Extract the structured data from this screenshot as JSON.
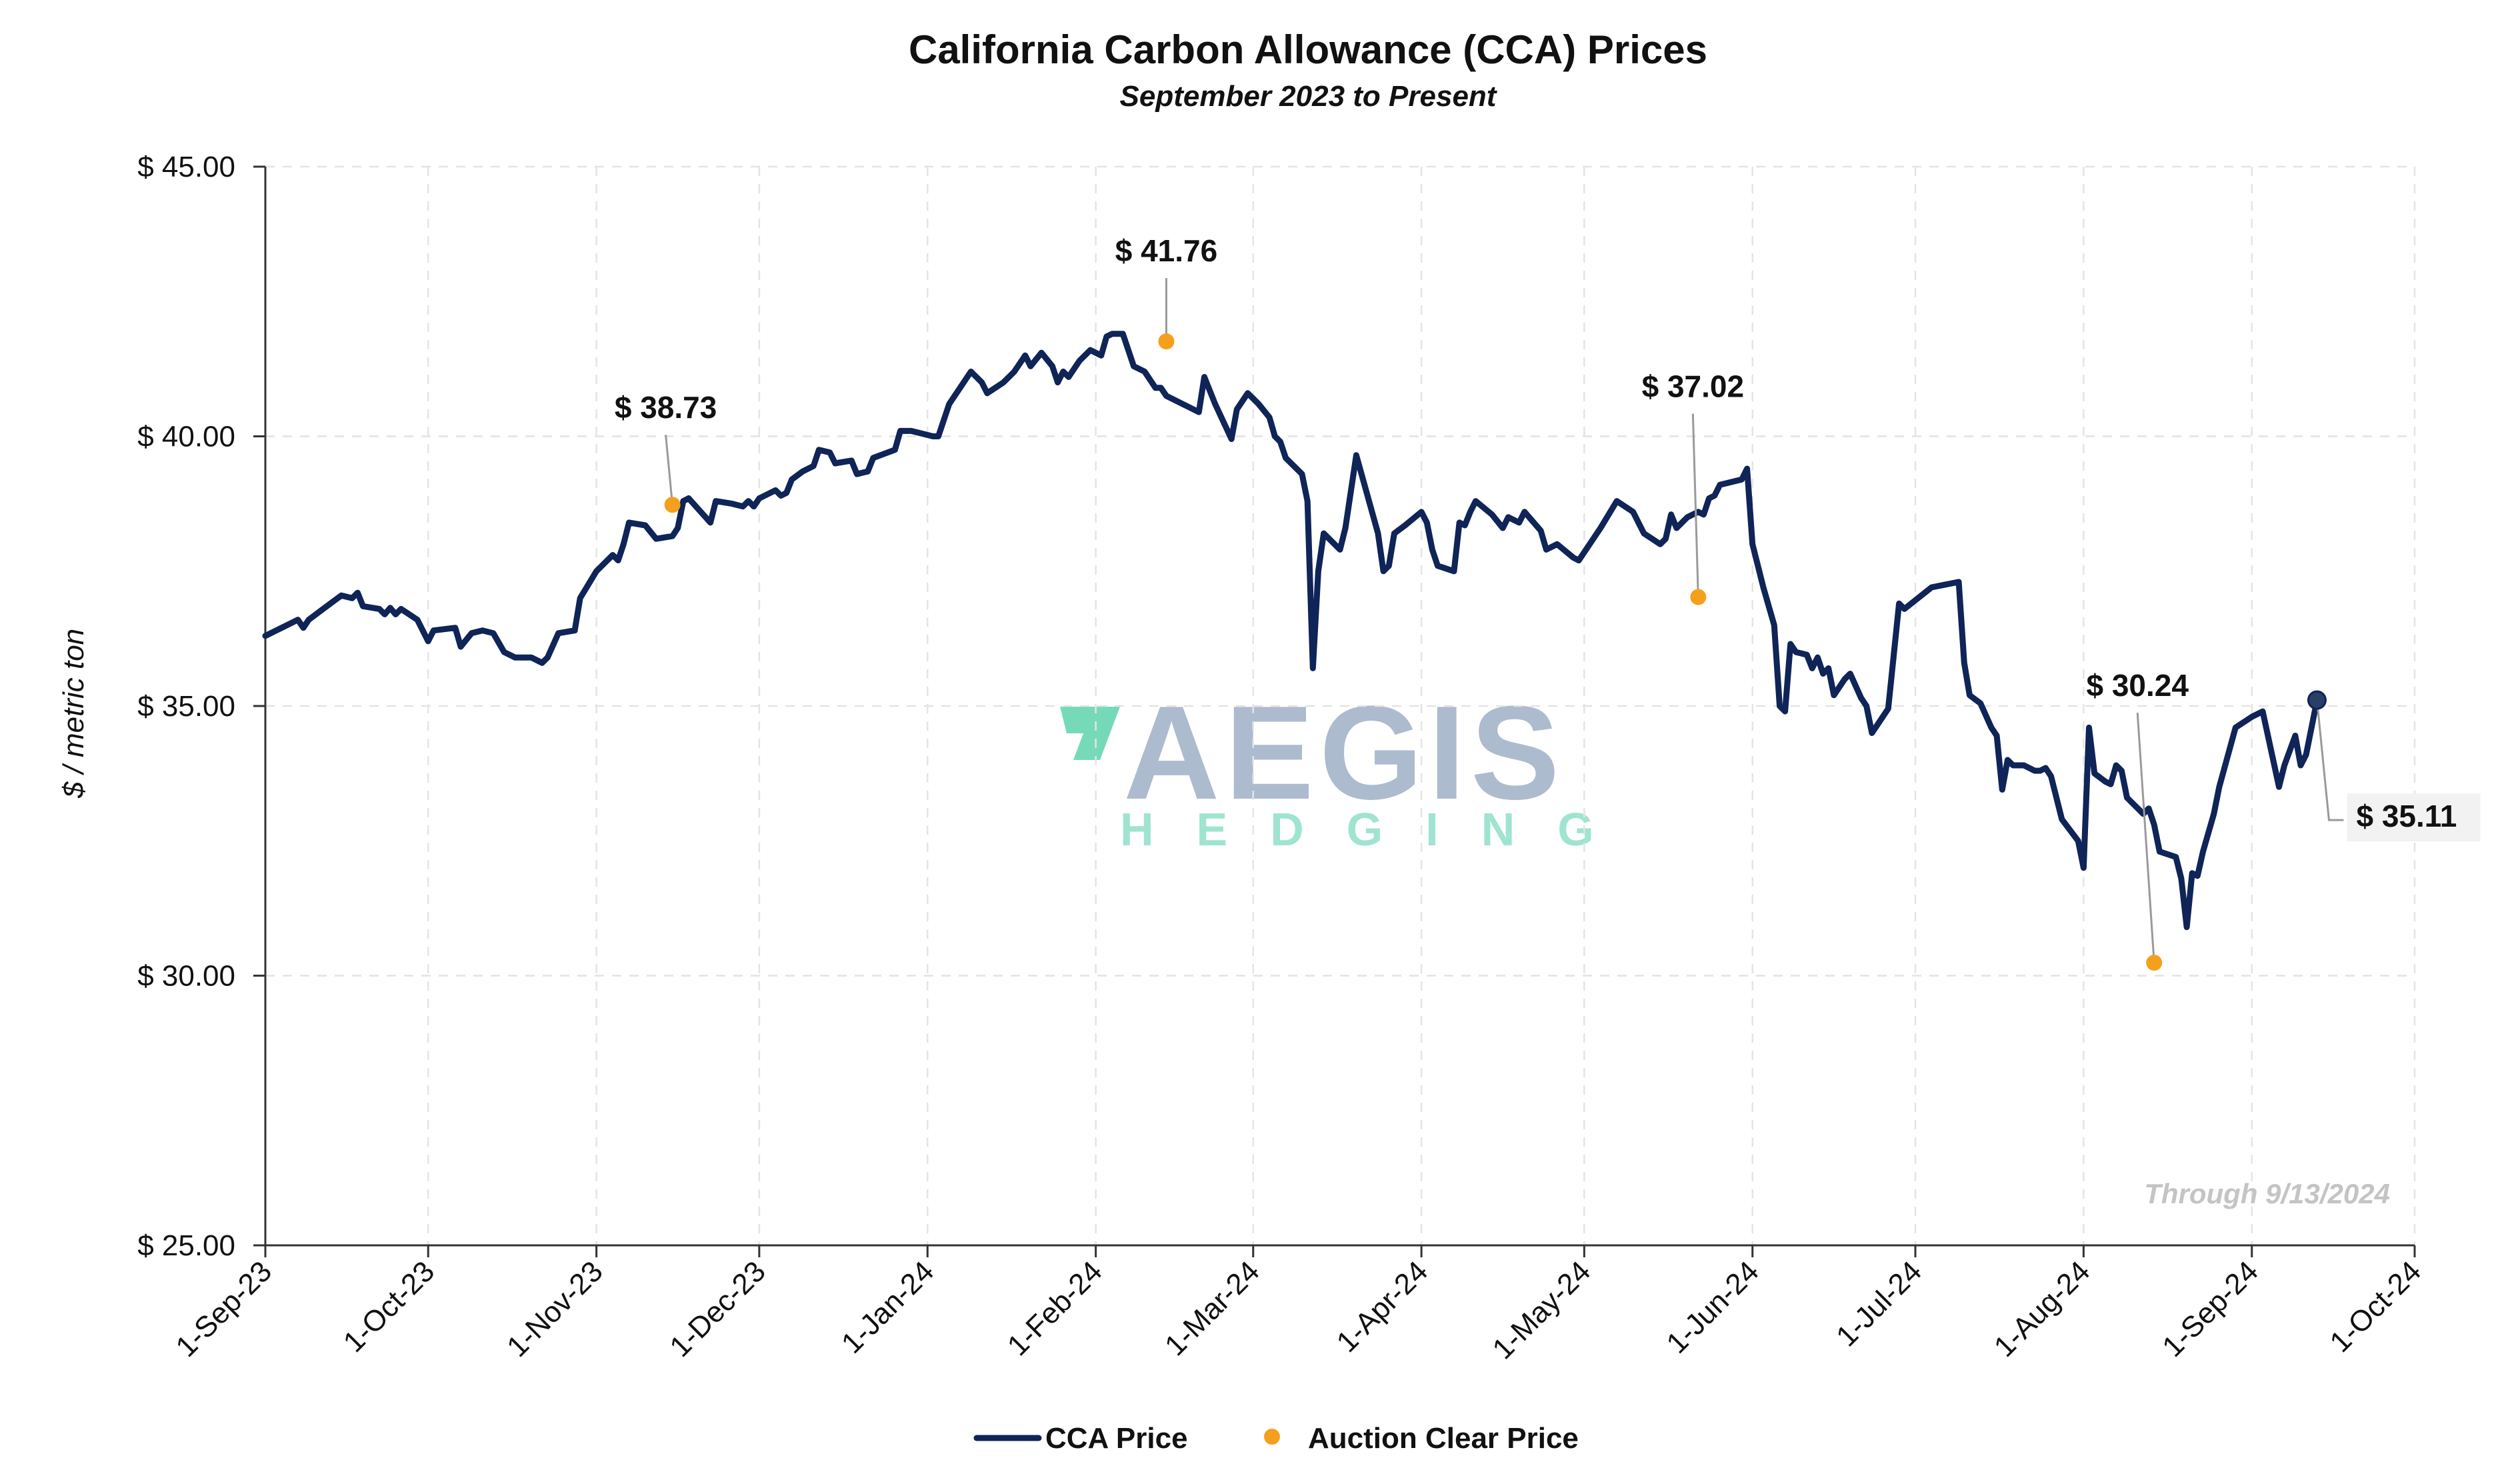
{
  "chart_data": {
    "type": "line",
    "title": "California Carbon Allowance (CCA) Prices",
    "subtitle": "September 2023 to Present",
    "ylabel": "$ / metric ton",
    "xlabel": "",
    "ylim": [
      25,
      45
    ],
    "xlim": [
      "2023-09-01",
      "2024-10-01"
    ],
    "y_ticks": [
      {
        "value": 25,
        "label": "$ 25.00"
      },
      {
        "value": 30,
        "label": "$ 30.00"
      },
      {
        "value": 35,
        "label": "$ 35.00"
      },
      {
        "value": 40,
        "label": "$ 40.00"
      },
      {
        "value": 45,
        "label": "$ 45.00"
      }
    ],
    "x_ticks": [
      {
        "date": "2023-09-01",
        "label": "1-Sep-23"
      },
      {
        "date": "2023-10-01",
        "label": "1-Oct-23"
      },
      {
        "date": "2023-11-01",
        "label": "1-Nov-23"
      },
      {
        "date": "2023-12-01",
        "label": "1-Dec-23"
      },
      {
        "date": "2024-01-01",
        "label": "1-Jan-24"
      },
      {
        "date": "2024-02-01",
        "label": "1-Feb-24"
      },
      {
        "date": "2024-03-01",
        "label": "1-Mar-24"
      },
      {
        "date": "2024-04-01",
        "label": "1-Apr-24"
      },
      {
        "date": "2024-05-01",
        "label": "1-May-24"
      },
      {
        "date": "2024-06-01",
        "label": "1-Jun-24"
      },
      {
        "date": "2024-07-01",
        "label": "1-Jul-24"
      },
      {
        "date": "2024-08-01",
        "label": "1-Aug-24"
      },
      {
        "date": "2024-09-01",
        "label": "1-Sep-24"
      },
      {
        "date": "2024-10-01",
        "label": "1-Oct-24"
      }
    ],
    "grid": true,
    "legend_position": "bottom-center",
    "series": [
      {
        "name": "CCA Price",
        "color": "#0f2457",
        "points": [
          [
            "2023-09-01",
            36.3
          ],
          [
            "2023-09-05",
            36.5
          ],
          [
            "2023-09-07",
            36.6
          ],
          [
            "2023-09-08",
            36.45
          ],
          [
            "2023-09-09",
            36.6
          ],
          [
            "2023-09-11",
            36.75
          ],
          [
            "2023-09-13",
            36.9
          ],
          [
            "2023-09-15",
            37.05
          ],
          [
            "2023-09-17",
            37.0
          ],
          [
            "2023-09-18",
            37.1
          ],
          [
            "2023-09-19",
            36.85
          ],
          [
            "2023-09-22",
            36.8
          ],
          [
            "2023-09-23",
            36.7
          ],
          [
            "2023-09-24",
            36.82
          ],
          [
            "2023-09-25",
            36.7
          ],
          [
            "2023-09-26",
            36.8
          ],
          [
            "2023-09-29",
            36.6
          ],
          [
            "2023-09-30",
            36.4
          ],
          [
            "2023-10-01",
            36.2
          ],
          [
            "2023-10-02",
            36.4
          ],
          [
            "2023-10-06",
            36.45
          ],
          [
            "2023-10-07",
            36.1
          ],
          [
            "2023-10-09",
            36.35
          ],
          [
            "2023-10-11",
            36.4
          ],
          [
            "2023-10-13",
            36.35
          ],
          [
            "2023-10-15",
            36.0
          ],
          [
            "2023-10-17",
            35.9
          ],
          [
            "2023-10-20",
            35.9
          ],
          [
            "2023-10-22",
            35.8
          ],
          [
            "2023-10-23",
            35.9
          ],
          [
            "2023-10-25",
            36.35
          ],
          [
            "2023-10-28",
            36.4
          ],
          [
            "2023-10-29",
            37.0
          ],
          [
            "2023-11-01",
            37.5
          ],
          [
            "2023-11-02",
            37.6
          ],
          [
            "2023-11-04",
            37.8
          ],
          [
            "2023-11-05",
            37.7
          ],
          [
            "2023-11-06",
            38.0
          ],
          [
            "2023-11-07",
            38.4
          ],
          [
            "2023-11-10",
            38.35
          ],
          [
            "2023-11-12",
            38.1
          ],
          [
            "2023-11-15",
            38.15
          ],
          [
            "2023-11-16",
            38.3
          ],
          [
            "2023-11-17",
            38.8
          ],
          [
            "2023-11-18",
            38.85
          ],
          [
            "2023-11-22",
            38.4
          ],
          [
            "2023-11-23",
            38.8
          ],
          [
            "2023-11-26",
            38.75
          ],
          [
            "2023-11-28",
            38.7
          ],
          [
            "2023-11-29",
            38.8
          ],
          [
            "2023-11-30",
            38.7
          ],
          [
            "2023-12-01",
            38.85
          ],
          [
            "2023-12-04",
            39.0
          ],
          [
            "2023-12-05",
            38.9
          ],
          [
            "2023-12-06",
            38.95
          ],
          [
            "2023-12-07",
            39.2
          ],
          [
            "2023-12-09",
            39.35
          ],
          [
            "2023-12-11",
            39.45
          ],
          [
            "2023-12-12",
            39.75
          ],
          [
            "2023-12-14",
            39.7
          ],
          [
            "2023-12-15",
            39.5
          ],
          [
            "2023-12-18",
            39.55
          ],
          [
            "2023-12-19",
            39.3
          ],
          [
            "2023-12-21",
            39.35
          ],
          [
            "2023-12-22",
            39.6
          ],
          [
            "2023-12-26",
            39.75
          ],
          [
            "2023-12-27",
            40.1
          ],
          [
            "2023-12-29",
            40.1
          ],
          [
            "2024-01-02",
            40.0
          ],
          [
            "2024-01-03",
            40.0
          ],
          [
            "2024-01-05",
            40.6
          ],
          [
            "2024-01-07",
            40.9
          ],
          [
            "2024-01-09",
            41.2
          ],
          [
            "2024-01-11",
            41.0
          ],
          [
            "2024-01-12",
            40.8
          ],
          [
            "2024-01-15",
            41.0
          ],
          [
            "2024-01-17",
            41.2
          ],
          [
            "2024-01-19",
            41.5
          ],
          [
            "2024-01-20",
            41.3
          ],
          [
            "2024-01-22",
            41.55
          ],
          [
            "2024-01-24",
            41.3
          ],
          [
            "2024-01-25",
            41.0
          ],
          [
            "2024-01-26",
            41.2
          ],
          [
            "2024-01-27",
            41.1
          ],
          [
            "2024-01-29",
            41.4
          ],
          [
            "2024-01-31",
            41.6
          ],
          [
            "2024-02-02",
            41.5
          ],
          [
            "2024-02-03",
            41.85
          ],
          [
            "2024-02-04",
            41.9
          ],
          [
            "2024-02-06",
            41.9
          ],
          [
            "2024-02-08",
            41.3
          ],
          [
            "2024-02-10",
            41.2
          ],
          [
            "2024-02-12",
            40.9
          ],
          [
            "2024-02-13",
            40.9
          ],
          [
            "2024-02-14",
            40.75
          ],
          [
            "2024-02-17",
            40.6
          ],
          [
            "2024-02-20",
            40.45
          ],
          [
            "2024-02-21",
            41.1
          ],
          [
            "2024-02-23",
            40.6
          ],
          [
            "2024-02-26",
            39.95
          ],
          [
            "2024-02-27",
            40.5
          ],
          [
            "2024-02-29",
            40.8
          ],
          [
            "2024-03-02",
            40.6
          ],
          [
            "2024-03-04",
            40.35
          ],
          [
            "2024-03-05",
            40.0
          ],
          [
            "2024-03-06",
            39.9
          ],
          [
            "2024-03-07",
            39.6
          ],
          [
            "2024-03-10",
            39.3
          ],
          [
            "2024-03-11",
            38.8
          ],
          [
            "2024-03-12",
            35.7
          ],
          [
            "2024-03-13",
            37.5
          ],
          [
            "2024-03-14",
            38.2
          ],
          [
            "2024-03-17",
            37.9
          ],
          [
            "2024-03-18",
            38.3
          ],
          [
            "2024-03-20",
            39.65
          ],
          [
            "2024-03-24",
            38.2
          ],
          [
            "2024-03-25",
            37.5
          ],
          [
            "2024-03-26",
            37.6
          ],
          [
            "2024-03-27",
            38.2
          ],
          [
            "2024-03-29",
            38.35
          ],
          [
            "2024-04-01",
            38.6
          ],
          [
            "2024-04-02",
            38.4
          ],
          [
            "2024-04-03",
            37.9
          ],
          [
            "2024-04-04",
            37.6
          ],
          [
            "2024-04-07",
            37.5
          ],
          [
            "2024-04-08",
            38.4
          ],
          [
            "2024-04-09",
            38.35
          ],
          [
            "2024-04-10",
            38.6
          ],
          [
            "2024-04-11",
            38.8
          ],
          [
            "2024-04-14",
            38.55
          ],
          [
            "2024-04-16",
            38.3
          ],
          [
            "2024-04-17",
            38.5
          ],
          [
            "2024-04-19",
            38.4
          ],
          [
            "2024-04-20",
            38.6
          ],
          [
            "2024-04-23",
            38.25
          ],
          [
            "2024-04-24",
            37.9
          ],
          [
            "2024-04-26",
            38.0
          ],
          [
            "2024-04-29",
            37.75
          ],
          [
            "2024-04-30",
            37.7
          ],
          [
            "2024-05-02",
            38.0
          ],
          [
            "2024-05-04",
            38.3
          ],
          [
            "2024-05-07",
            38.8
          ],
          [
            "2024-05-10",
            38.6
          ],
          [
            "2024-05-12",
            38.2
          ],
          [
            "2024-05-15",
            38.0
          ],
          [
            "2024-05-16",
            38.1
          ],
          [
            "2024-05-17",
            38.55
          ],
          [
            "2024-05-18",
            38.3
          ],
          [
            "2024-05-20",
            38.5
          ],
          [
            "2024-05-22",
            38.6
          ],
          [
            "2024-05-23",
            38.55
          ],
          [
            "2024-05-24",
            38.85
          ],
          [
            "2024-05-25",
            38.9
          ],
          [
            "2024-05-26",
            39.1
          ],
          [
            "2024-05-30",
            39.2
          ],
          [
            "2024-05-31",
            39.4
          ],
          [
            "2024-06-01",
            38.0
          ],
          [
            "2024-06-03",
            37.2
          ],
          [
            "2024-06-05",
            36.5
          ],
          [
            "2024-06-06",
            35.0
          ],
          [
            "2024-06-07",
            34.9
          ],
          [
            "2024-06-08",
            36.15
          ],
          [
            "2024-06-09",
            36.0
          ],
          [
            "2024-06-11",
            35.95
          ],
          [
            "2024-06-12",
            35.7
          ],
          [
            "2024-06-13",
            35.9
          ],
          [
            "2024-06-14",
            35.6
          ],
          [
            "2024-06-15",
            35.7
          ],
          [
            "2024-06-16",
            35.2
          ],
          [
            "2024-06-18",
            35.5
          ],
          [
            "2024-06-19",
            35.6
          ],
          [
            "2024-06-21",
            35.15
          ],
          [
            "2024-06-22",
            35.0
          ],
          [
            "2024-06-23",
            34.5
          ],
          [
            "2024-06-26",
            34.95
          ],
          [
            "2024-06-28",
            36.9
          ],
          [
            "2024-06-29",
            36.8
          ],
          [
            "2024-07-04",
            37.2
          ],
          [
            "2024-07-09",
            37.3
          ],
          [
            "2024-07-10",
            35.8
          ],
          [
            "2024-07-11",
            35.2
          ],
          [
            "2024-07-13",
            35.05
          ],
          [
            "2024-07-15",
            34.6
          ],
          [
            "2024-07-16",
            34.45
          ],
          [
            "2024-07-17",
            33.45
          ],
          [
            "2024-07-18",
            34.0
          ],
          [
            "2024-07-19",
            33.9
          ],
          [
            "2024-07-21",
            33.9
          ],
          [
            "2024-07-23",
            33.8
          ],
          [
            "2024-07-24",
            33.8
          ],
          [
            "2024-07-25",
            33.85
          ],
          [
            "2024-07-26",
            33.7
          ],
          [
            "2024-07-28",
            32.9
          ],
          [
            "2024-07-31",
            32.5
          ],
          [
            "2024-08-01",
            32.0
          ],
          [
            "2024-08-02",
            34.6
          ],
          [
            "2024-08-03",
            33.75
          ],
          [
            "2024-08-05",
            33.6
          ],
          [
            "2024-08-06",
            33.55
          ],
          [
            "2024-08-07",
            33.9
          ],
          [
            "2024-08-08",
            33.8
          ],
          [
            "2024-08-09",
            33.3
          ],
          [
            "2024-08-10",
            33.2
          ],
          [
            "2024-08-11",
            33.1
          ],
          [
            "2024-08-12",
            33.0
          ],
          [
            "2024-08-13",
            33.1
          ],
          [
            "2024-08-14",
            32.8
          ],
          [
            "2024-08-15",
            32.3
          ],
          [
            "2024-08-18",
            32.2
          ],
          [
            "2024-08-19",
            31.8
          ],
          [
            "2024-08-20",
            30.9
          ],
          [
            "2024-08-21",
            31.9
          ],
          [
            "2024-08-22",
            31.85
          ],
          [
            "2024-08-23",
            32.3
          ],
          [
            "2024-08-25",
            33.0
          ],
          [
            "2024-08-26",
            33.5
          ],
          [
            "2024-08-29",
            34.6
          ],
          [
            "2024-09-01",
            34.8
          ],
          [
            "2024-09-03",
            34.9
          ],
          [
            "2024-09-06",
            33.5
          ],
          [
            "2024-09-07",
            33.9
          ],
          [
            "2024-09-09",
            34.45
          ],
          [
            "2024-09-10",
            33.9
          ],
          [
            "2024-09-11",
            34.1
          ],
          [
            "2024-09-13",
            35.11
          ]
        ]
      }
    ],
    "auction_clear_prices": {
      "name": "Auction Clear Price",
      "color": "#f5a01d",
      "points": [
        {
          "date": "2023-11-15",
          "value": 38.73,
          "label": "$ 38.73"
        },
        {
          "date": "2024-02-14",
          "value": 41.76,
          "label": "$ 41.76"
        },
        {
          "date": "2024-05-22",
          "value": 37.02,
          "label": "$ 37.02"
        },
        {
          "date": "2024-08-14",
          "value": 30.24,
          "label": "$ 30.24"
        }
      ]
    },
    "last_price": {
      "date": "2024-09-13",
      "value": 35.11,
      "label": "$ 35.11"
    },
    "annotation": "Through 9/13/2024",
    "legend": [
      {
        "label": "CCA Price",
        "kind": "line",
        "color": "#0f2457"
      },
      {
        "label": "Auction Clear Price",
        "kind": "dot",
        "color": "#f5a01d"
      }
    ]
  },
  "watermark": {
    "word": "AEGIS",
    "subword": "HEDGING",
    "mark_color": "#5ed3ad",
    "text_color": "#9fb0c6"
  }
}
